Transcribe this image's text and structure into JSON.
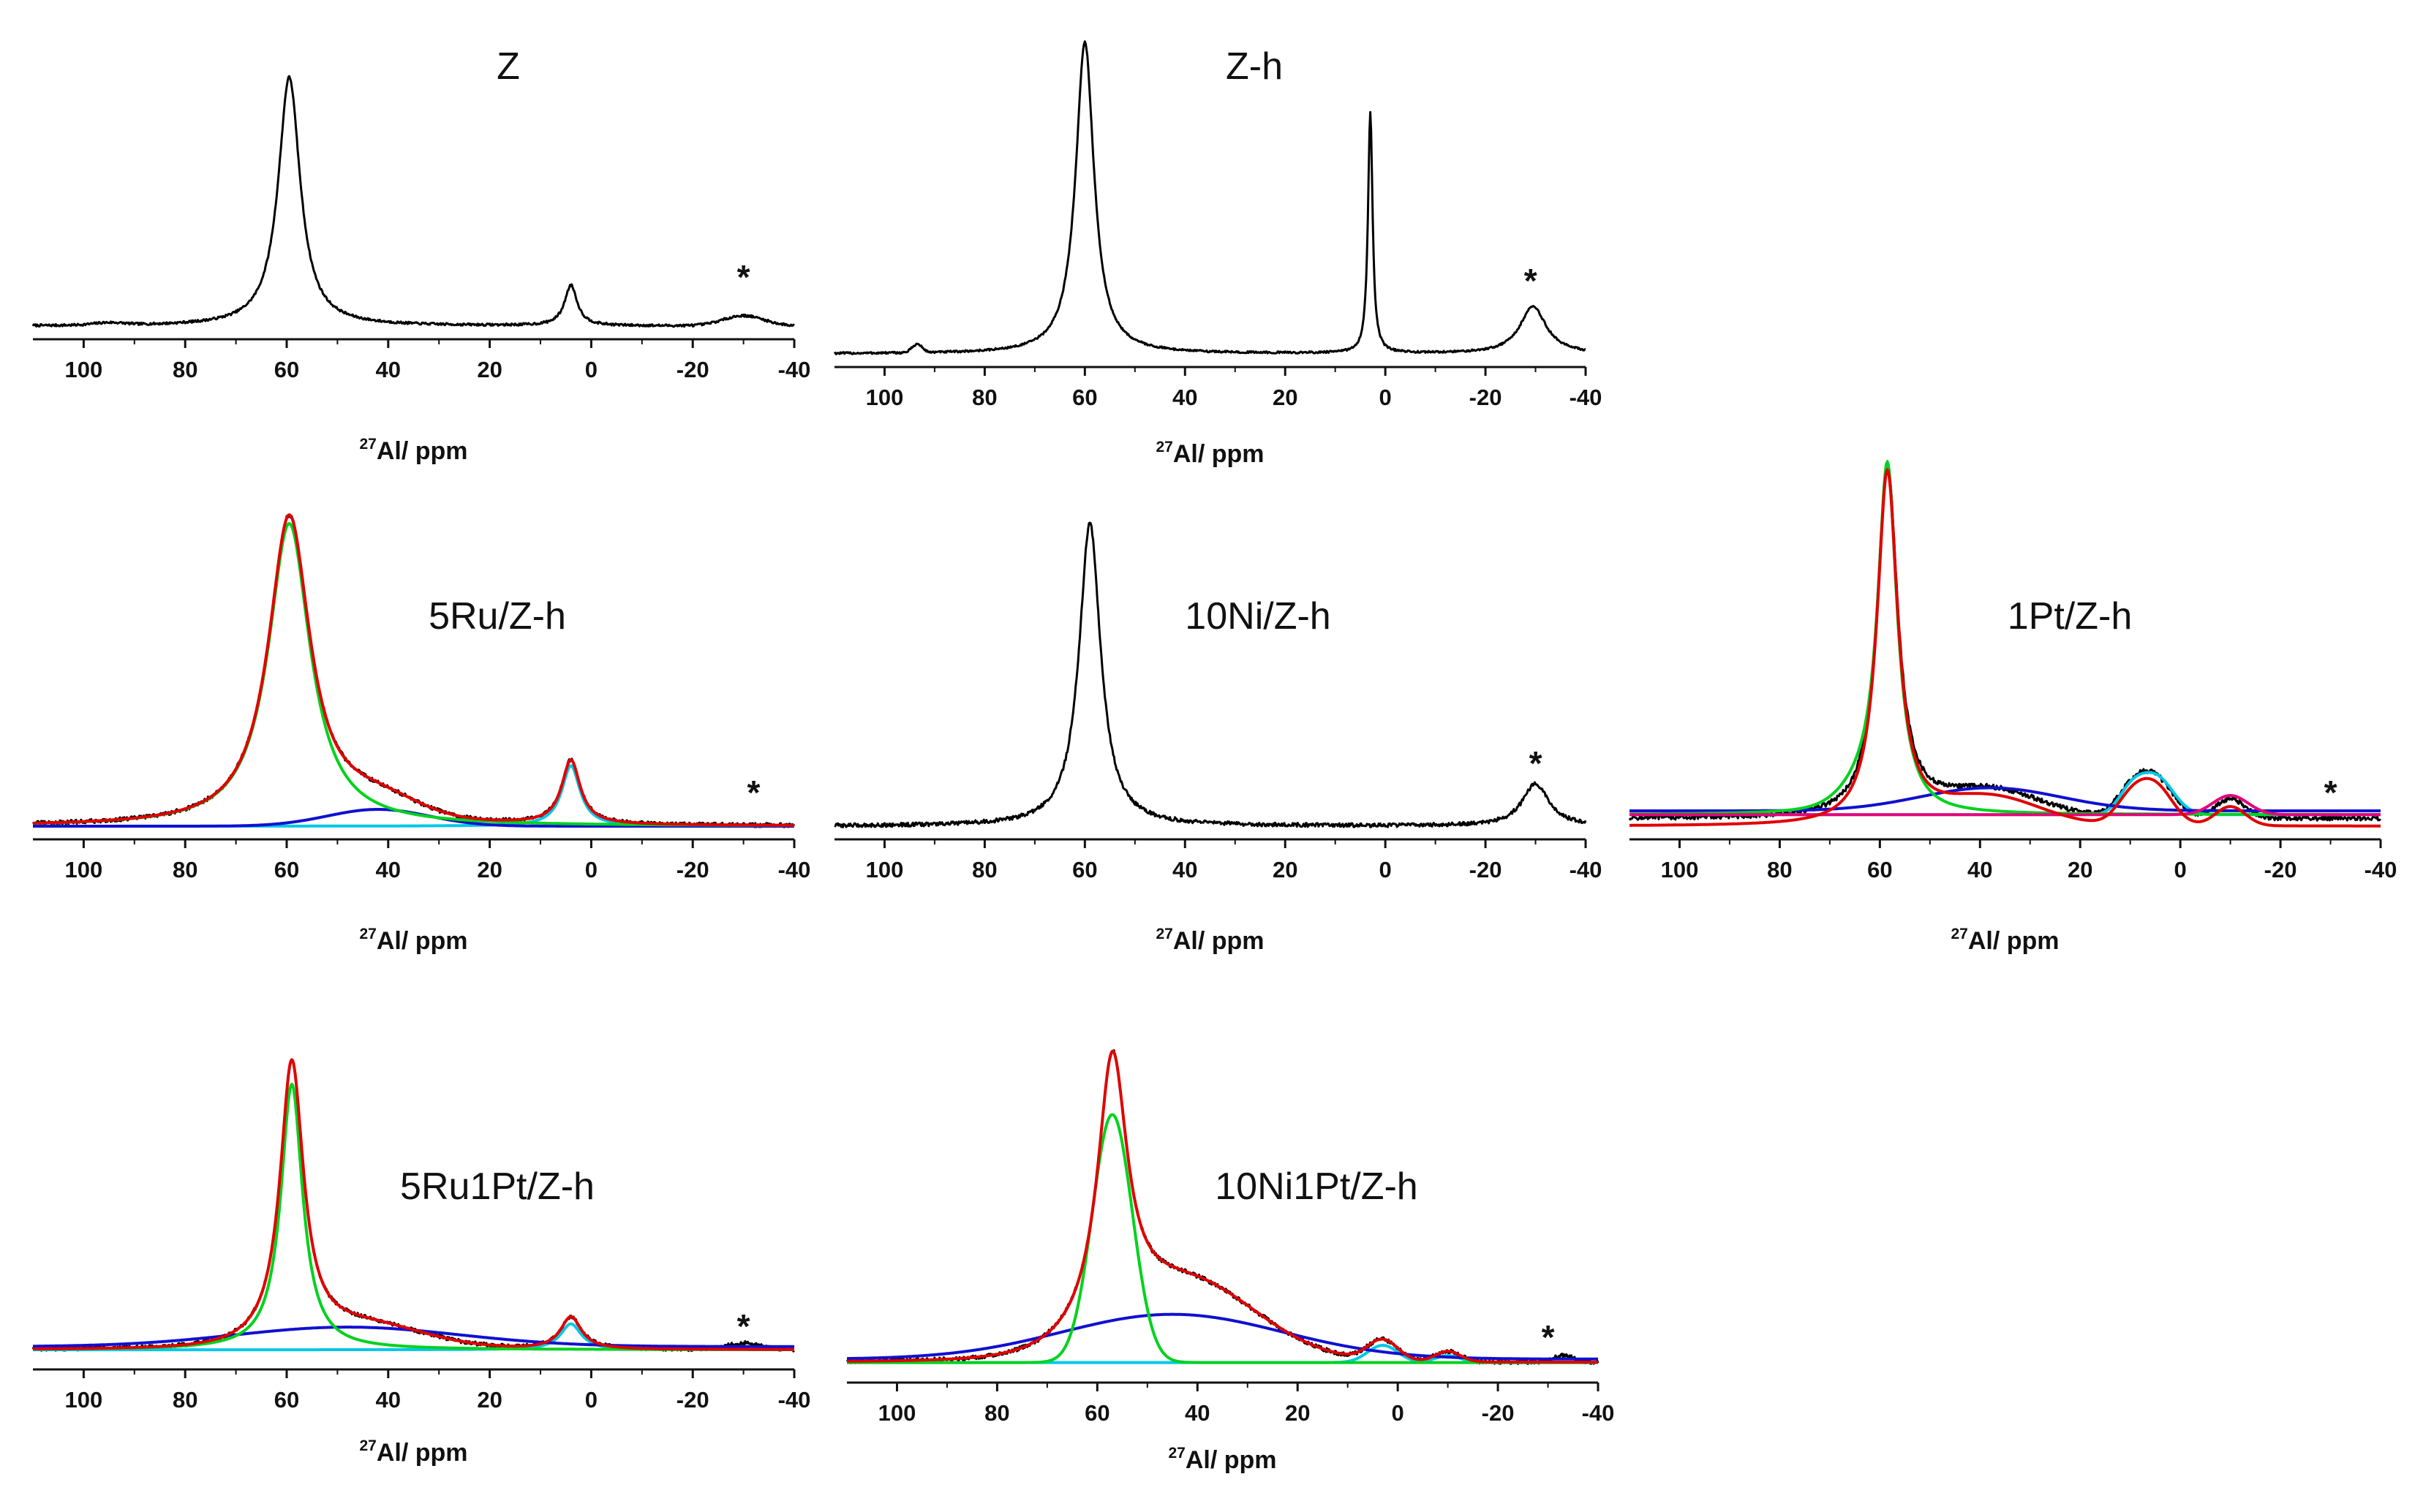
{
  "figure": {
    "description_free": true
  },
  "colors": {
    "experimental": "#000000",
    "fit": "#e00000",
    "octahedral": "#00c8e6",
    "tetrahedral": "#00d21e",
    "broad": "#1010d0",
    "pentacoordinated": "#e6007a"
  },
  "chart_data": [
    {
      "id": "Z",
      "type": "line",
      "title": "Z",
      "xlabel_sup": "27",
      "xlabel": "Al/ ppm",
      "xlim": [
        110,
        -40
      ],
      "xticks": [
        100,
        80,
        60,
        40,
        20,
        0,
        -20,
        -40
      ],
      "xtick_labels": [
        "100",
        "80",
        "60",
        "40",
        "20",
        "0",
        "-20",
        "-40"
      ],
      "marker": "*",
      "marker_x": -30,
      "series": [
        {
          "name": "experimental",
          "color": "#000000",
          "baseline": 0.0,
          "noise": 0.004,
          "peaks": [
            {
              "c": 59.5,
              "h": 0.86,
              "w": 2.6,
              "shape": "lorentz"
            },
            {
              "c": 4.0,
              "h": 0.14,
              "w": 1.5,
              "shape": "lorentz"
            },
            {
              "c": -30.0,
              "h": 0.035,
              "w": 4.0,
              "shape": "gauss"
            },
            {
              "c": 95.0,
              "h": 0.008,
              "w": 3.0,
              "shape": "gauss"
            }
          ]
        }
      ]
    },
    {
      "id": "Z-h",
      "type": "line",
      "title": "Z-h",
      "xlabel_sup": "27",
      "xlabel": "Al/ ppm",
      "xlim": [
        110,
        -40
      ],
      "xticks": [
        100,
        80,
        60,
        40,
        20,
        0,
        -20,
        -40
      ],
      "xtick_labels": [
        "100",
        "80",
        "60",
        "40",
        "20",
        "0",
        "-20",
        "-40"
      ],
      "marker": "*",
      "marker_x": -29,
      "series": [
        {
          "name": "experimental",
          "color": "#000000",
          "baseline": 0.0,
          "noise": 0.003,
          "peaks": [
            {
              "c": 60.0,
              "h": 0.93,
              "w": 2.2,
              "shape": "lorentz"
            },
            {
              "c": 3.0,
              "h": 0.72,
              "w": 0.55,
              "shape": "lorentz"
            },
            {
              "c": -29.5,
              "h": 0.14,
              "w": 3.2,
              "shape": "lorentz"
            },
            {
              "c": 93.5,
              "h": 0.025,
              "w": 1.0,
              "shape": "gauss"
            }
          ]
        }
      ]
    },
    {
      "id": "5Ru/Z-h",
      "type": "line",
      "title": "5Ru/Z-h",
      "xlabel_sup": "27",
      "xlabel": "Al/ ppm",
      "xlim": [
        110,
        -40
      ],
      "xticks": [
        100,
        80,
        60,
        40,
        20,
        0,
        -20,
        -40
      ],
      "xtick_labels": [
        "100",
        "80",
        "60",
        "40",
        "20",
        "0",
        "-20",
        "-40"
      ],
      "marker": "*",
      "marker_x": -32,
      "series": [
        {
          "name": "experimental",
          "color": "#000000",
          "baseline": 0.0,
          "noise": 0.006,
          "peaks": [
            {
              "c": 59.5,
              "h": 0.92,
              "w": 5.0,
              "shape": "lorentz"
            },
            {
              "c": 42.0,
              "h": 0.06,
              "w": 8.0,
              "shape": "gauss"
            },
            {
              "c": 4.0,
              "h": 0.19,
              "w": 2.2,
              "shape": "lorentz"
            }
          ]
        },
        {
          "name": "fit",
          "color": "#e00000",
          "baseline": 0.0,
          "noise": 0,
          "peaks": [
            {
              "c": 59.5,
              "h": 0.92,
              "w": 5.0,
              "shape": "lorentz"
            },
            {
              "c": 42.0,
              "h": 0.06,
              "w": 8.0,
              "shape": "gauss"
            },
            {
              "c": 4.0,
              "h": 0.19,
              "w": 2.2,
              "shape": "lorentz"
            }
          ]
        },
        {
          "name": "tetrahedral",
          "color": "#00d21e",
          "baseline": 0.0,
          "noise": 0,
          "peaks": [
            {
              "c": 59.5,
              "h": 0.9,
              "w": 5.0,
              "shape": "lorentz"
            }
          ]
        },
        {
          "name": "broad",
          "color": "#1010d0",
          "baseline": 0.0,
          "noise": 0,
          "peaks": [
            {
              "c": 42.0,
              "h": 0.05,
              "w": 10.0,
              "shape": "gauss"
            }
          ]
        },
        {
          "name": "octahedral",
          "color": "#00c8e6",
          "baseline": 0.0,
          "noise": 0,
          "peaks": [
            {
              "c": 4.0,
              "h": 0.18,
              "w": 2.2,
              "shape": "lorentz"
            }
          ]
        }
      ]
    },
    {
      "id": "10Ni/Z-h",
      "type": "line",
      "title": "10Ni/Z-h",
      "xlabel_sup": "27",
      "xlabel": "Al/ ppm",
      "xlim": [
        110,
        -40
      ],
      "xticks": [
        100,
        80,
        60,
        40,
        20,
        0,
        -20,
        -40
      ],
      "xtick_labels": [
        "100",
        "80",
        "60",
        "40",
        "20",
        "0",
        "-20",
        "-40"
      ],
      "marker": "*",
      "marker_x": -30,
      "series": [
        {
          "name": "experimental",
          "color": "#000000",
          "baseline": 0.0,
          "noise": 0.006,
          "peaks": [
            {
              "c": 59.0,
              "h": 0.93,
              "w": 2.6,
              "shape": "lorentz"
            },
            {
              "c": -30.0,
              "h": 0.13,
              "w": 3.2,
              "shape": "lorentz"
            }
          ]
        }
      ]
    },
    {
      "id": "1Pt/Z-h",
      "type": "line",
      "title": "1Pt/Z-h",
      "xlabel_sup": "27",
      "xlabel": "Al/ ppm",
      "xlim": [
        110,
        -40
      ],
      "xticks": [
        100,
        80,
        60,
        40,
        20,
        0,
        -20,
        -40
      ],
      "xtick_labels": [
        "100",
        "80",
        "60",
        "40",
        "20",
        "0",
        "-20",
        "-40"
      ],
      "marker": "*",
      "marker_x": -30,
      "series": [
        {
          "name": "experimental",
          "color": "#000000",
          "baseline": 0.02,
          "noise": 0.006,
          "peaks": [
            {
              "c": 58.5,
              "h": 0.92,
              "w": 2.5,
              "shape": "lorentz"
            },
            {
              "c": 38.0,
              "h": 0.07,
              "w": 10.0,
              "shape": "gauss"
            },
            {
              "c": 5.0,
              "h": 0.1,
              "w": 3.5,
              "shape": "gauss"
            },
            {
              "c": 10.0,
              "h": 0.06,
              "w": 3.0,
              "shape": "gauss"
            },
            {
              "c": -10.0,
              "h": 0.05,
              "w": 3.0,
              "shape": "gauss"
            }
          ]
        },
        {
          "name": "fit",
          "color": "#e00000",
          "baseline": 0.0,
          "noise": 0,
          "peaks": [
            {
              "c": 58.5,
              "h": 0.92,
              "w": 2.5,
              "shape": "lorentz"
            },
            {
              "c": 38.0,
              "h": 0.07,
              "w": 10.0,
              "shape": "gauss"
            },
            {
              "c": 5.0,
              "h": 0.1,
              "w": 3.5,
              "shape": "gauss"
            },
            {
              "c": 10.0,
              "h": 0.06,
              "w": 3.0,
              "shape": "gauss"
            },
            {
              "c": -10.0,
              "h": 0.05,
              "w": 3.0,
              "shape": "gauss"
            }
          ]
        },
        {
          "name": "tetrahedral",
          "color": "#00d21e",
          "baseline": 0.03,
          "noise": 0,
          "peaks": [
            {
              "c": 58.5,
              "h": 0.88,
              "w": 2.3,
              "shape": "lorentz"
            },
            {
              "c": 62.0,
              "h": 0.05,
              "w": 5.0,
              "shape": "gauss"
            }
          ]
        },
        {
          "name": "broad",
          "color": "#1010d0",
          "baseline": 0.04,
          "noise": 0,
          "peaks": [
            {
              "c": 38.0,
              "h": 0.06,
              "w": 14.0,
              "shape": "gauss"
            }
          ]
        },
        {
          "name": "octahedral",
          "color": "#00c8e6",
          "baseline": 0.03,
          "noise": 0,
          "peaks": [
            {
              "c": 5.0,
              "h": 0.1,
              "w": 3.5,
              "shape": "gauss"
            },
            {
              "c": 10.0,
              "h": 0.05,
              "w": 2.5,
              "shape": "gauss"
            }
          ]
        },
        {
          "name": "pentacoordinated",
          "color": "#e6007a",
          "baseline": 0.03,
          "noise": 0,
          "peaks": [
            {
              "c": -10.0,
              "h": 0.05,
              "w": 3.5,
              "shape": "gauss"
            }
          ]
        }
      ]
    },
    {
      "id": "5Ru1Pt/Z-h",
      "type": "line",
      "title": "5Ru1Pt/Z-h",
      "xlabel_sup": "27",
      "xlabel": "Al/ ppm",
      "xlim": [
        110,
        -40
      ],
      "xticks": [
        100,
        80,
        60,
        40,
        20,
        0,
        -20,
        -40
      ],
      "xtick_labels": [
        "100",
        "80",
        "60",
        "40",
        "20",
        "0",
        "-20",
        "-40"
      ],
      "marker": "*",
      "marker_x": -30,
      "series": [
        {
          "name": "experimental",
          "color": "#000000",
          "baseline": 0.02,
          "noise": 0.006,
          "peaks": [
            {
              "c": 59.0,
              "h": 0.86,
              "w": 2.8,
              "shape": "lorentz"
            },
            {
              "c": 45.0,
              "h": 0.07,
              "w": 12.0,
              "shape": "gauss"
            },
            {
              "c": 4.0,
              "h": 0.1,
              "w": 2.5,
              "shape": "lorentz"
            },
            {
              "c": -30.0,
              "h": 0.02,
              "w": 3.0,
              "shape": "gauss"
            }
          ]
        },
        {
          "name": "fit",
          "color": "#e00000",
          "baseline": 0.02,
          "noise": 0,
          "peaks": [
            {
              "c": 59.0,
              "h": 0.86,
              "w": 2.8,
              "shape": "lorentz"
            },
            {
              "c": 45.0,
              "h": 0.07,
              "w": 12.0,
              "shape": "gauss"
            },
            {
              "c": 4.0,
              "h": 0.1,
              "w": 2.5,
              "shape": "lorentz"
            }
          ]
        },
        {
          "name": "tetrahedral",
          "color": "#00d21e",
          "baseline": 0.02,
          "noise": 0,
          "peaks": [
            {
              "c": 59.0,
              "h": 0.82,
              "w": 2.6,
              "shape": "lorentz"
            }
          ]
        },
        {
          "name": "broad",
          "color": "#1010d0",
          "baseline": 0.03,
          "noise": 0,
          "peaks": [
            {
              "c": 48.0,
              "h": 0.06,
              "w": 22.0,
              "shape": "gauss"
            }
          ]
        },
        {
          "name": "octahedral",
          "color": "#00c8e6",
          "baseline": 0.02,
          "noise": 0,
          "peaks": [
            {
              "c": 4.0,
              "h": 0.08,
              "w": 2.5,
              "shape": "lorentz"
            }
          ]
        }
      ]
    },
    {
      "id": "10Ni1Pt/Z-h",
      "type": "line",
      "title": "10Ni1Pt/Z-h",
      "xlabel_sup": "27",
      "xlabel": "Al/ ppm",
      "xlim": [
        110,
        -40
      ],
      "xticks": [
        100,
        80,
        60,
        40,
        20,
        0,
        -20,
        -40
      ],
      "xtick_labels": [
        "100",
        "80",
        "60",
        "40",
        "20",
        "0",
        "-20",
        "-40"
      ],
      "marker": "*",
      "marker_x": -30,
      "series": [
        {
          "name": "experimental",
          "color": "#000000",
          "baseline": 0.02,
          "noise": 0.006,
          "peaks": [
            {
              "c": 57.0,
              "h": 0.78,
              "w": 3.6,
              "shape": "lorentz"
            },
            {
              "c": 42.0,
              "h": 0.22,
              "w": 14.0,
              "shape": "gauss"
            },
            {
              "c": 3.0,
              "h": 0.06,
              "w": 3.0,
              "shape": "gauss"
            },
            {
              "c": -10.0,
              "h": 0.03,
              "w": 2.5,
              "shape": "gauss"
            },
            {
              "c": -33.0,
              "h": 0.02,
              "w": 2.0,
              "shape": "gauss"
            }
          ]
        },
        {
          "name": "fit",
          "color": "#e00000",
          "baseline": 0.02,
          "noise": 0,
          "peaks": [
            {
              "c": 57.0,
              "h": 0.78,
              "w": 3.6,
              "shape": "lorentz"
            },
            {
              "c": 42.0,
              "h": 0.22,
              "w": 14.0,
              "shape": "gauss"
            },
            {
              "c": 3.0,
              "h": 0.06,
              "w": 3.0,
              "shape": "gauss"
            },
            {
              "c": -10.0,
              "h": 0.03,
              "w": 2.5,
              "shape": "gauss"
            }
          ]
        },
        {
          "name": "tetrahedral",
          "color": "#00d21e",
          "baseline": 0.02,
          "noise": 0,
          "peaks": [
            {
              "c": 57.0,
              "h": 0.72,
              "w": 4.0,
              "shape": "gauss"
            }
          ]
        },
        {
          "name": "broad",
          "color": "#1010d0",
          "baseline": 0.03,
          "noise": 0,
          "peaks": [
            {
              "c": 45.0,
              "h": 0.13,
              "w": 22.0,
              "shape": "gauss"
            }
          ]
        },
        {
          "name": "octahedral",
          "color": "#00c8e6",
          "baseline": 0.02,
          "noise": 0,
          "peaks": [
            {
              "c": 3.0,
              "h": 0.05,
              "w": 3.0,
              "shape": "gauss"
            },
            {
              "c": -10.0,
              "h": 0.02,
              "w": 2.5,
              "shape": "gauss"
            }
          ]
        }
      ]
    }
  ]
}
